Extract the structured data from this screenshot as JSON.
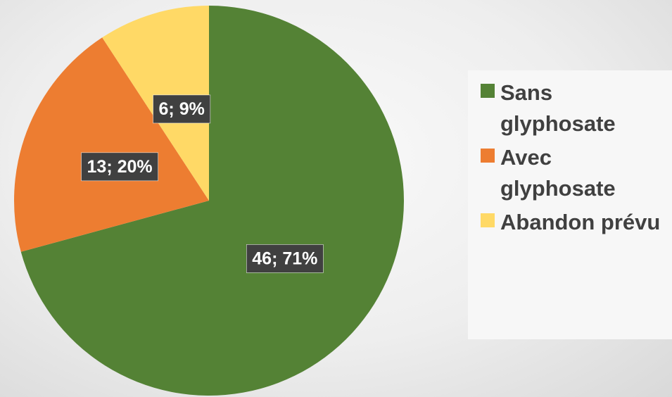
{
  "chart_data": {
    "type": "pie",
    "categories": [
      "Sans glyphosate",
      "Avec glyphosate",
      "Abandon prévu"
    ],
    "values": [
      46,
      13,
      6
    ],
    "value_labels": [
      "46; 71%",
      "13; 20%",
      "6; 9%"
    ],
    "colors": [
      "#548235",
      "#ed7d31",
      "#ffd966"
    ],
    "legend": "right"
  }
}
